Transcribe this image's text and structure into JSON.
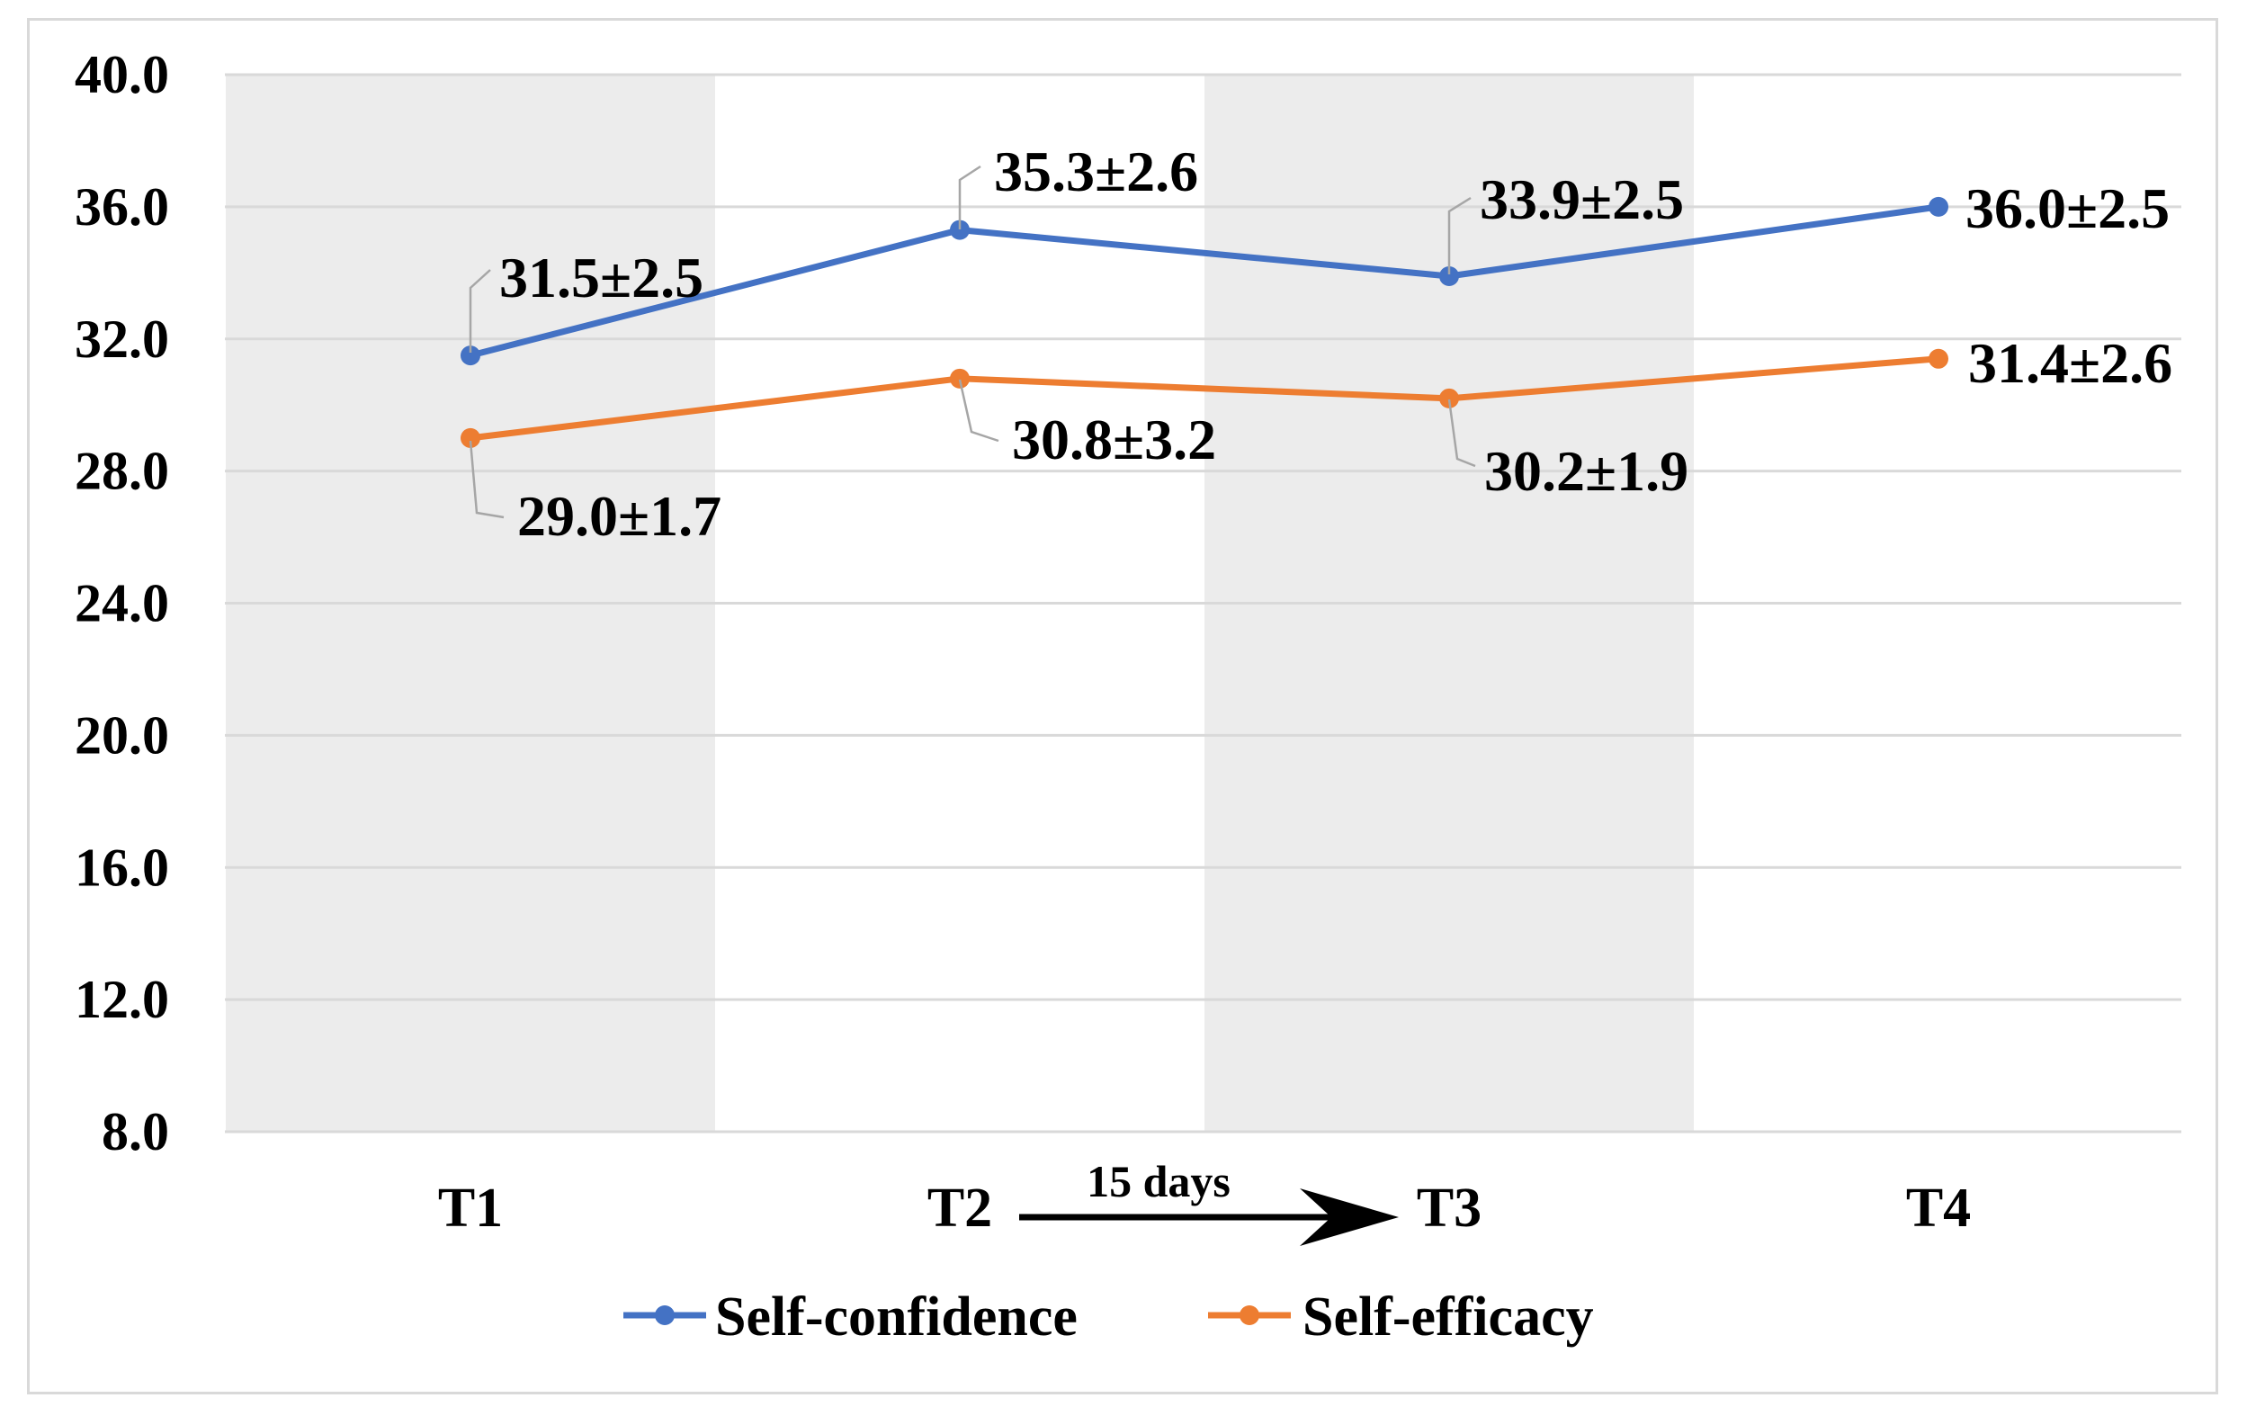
{
  "chart_data": {
    "type": "line",
    "title": "",
    "xlabel": "",
    "ylabel": "",
    "categories": [
      "T1",
      "T2",
      "T3",
      "T4"
    ],
    "ylim": [
      8.0,
      40.0
    ],
    "ytick_step": 4.0,
    "yticks": [
      "8.0",
      "12.0",
      "16.0",
      "20.0",
      "24.0",
      "28.0",
      "32.0",
      "36.0",
      "40.0"
    ],
    "grid": true,
    "shaded_categories": [
      "T1",
      "T3"
    ],
    "series": [
      {
        "name": "Self-confidence",
        "color": "#4472C4",
        "values": [
          31.5,
          35.3,
          33.9,
          36.0
        ],
        "labels": [
          "31.5±2.5",
          "35.3±2.6",
          "33.9±2.5",
          "36.0±2.5"
        ]
      },
      {
        "name": "Self-efficacy",
        "color": "#ED7D31",
        "values": [
          29.0,
          30.8,
          30.2,
          31.4
        ],
        "labels": [
          "29.0±1.7",
          "30.8±3.2",
          "30.2±1.9",
          "31.4±2.6"
        ]
      }
    ],
    "annotation": {
      "text": "15 days",
      "from": "T2",
      "to": "T3"
    },
    "legend_position": "bottom"
  }
}
